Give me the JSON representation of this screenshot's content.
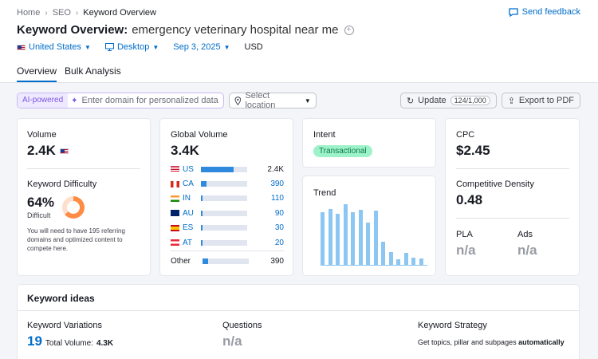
{
  "breadcrumbs": [
    "Home",
    "SEO",
    "Keyword Overview"
  ],
  "feedback_label": "Send feedback",
  "title": {
    "prefix": "Keyword Overview:",
    "keyword": "emergency veterinary hospital near me"
  },
  "filters": {
    "country": "United States",
    "device": "Desktop",
    "date": "Sep 3, 2025",
    "currency": "USD"
  },
  "tabs": [
    "Overview",
    "Bulk Analysis"
  ],
  "ai": {
    "tag": "AI-powered",
    "placeholder": "Enter domain for personalized data"
  },
  "location_placeholder": "Select location",
  "update": {
    "label": "Update",
    "count": "124/1,000"
  },
  "export_label": "Export to PDF",
  "volume": {
    "label": "Volume",
    "value": "2.4K"
  },
  "difficulty": {
    "label": "Keyword Difficulty",
    "value": "64%",
    "level": "Difficult",
    "percent": 64,
    "note": "You will need to have 195 referring domains and optimized content to compete here."
  },
  "global": {
    "label": "Global Volume",
    "value": "3.4K",
    "rows": [
      {
        "code": "US",
        "value": "2.4K",
        "share": 0.71
      },
      {
        "code": "CA",
        "value": "390",
        "share": 0.115
      },
      {
        "code": "IN",
        "value": "110",
        "share": 0.035
      },
      {
        "code": "AU",
        "value": "90",
        "share": 0.028
      },
      {
        "code": "ES",
        "value": "30",
        "share": 0.012
      },
      {
        "code": "AT",
        "value": "20",
        "share": 0.008
      }
    ],
    "other": {
      "label": "Other",
      "value": "390",
      "share": 0.115
    }
  },
  "intent": {
    "label": "Intent",
    "value": "Transactional"
  },
  "trend": {
    "label": "Trend",
    "values": [
      72,
      76,
      70,
      83,
      72,
      75,
      58,
      74,
      32,
      17,
      8,
      16,
      10,
      9
    ]
  },
  "cpc": {
    "label": "CPC",
    "value": "$2.45"
  },
  "density": {
    "label": "Competitive Density",
    "value": "0.48"
  },
  "pla": {
    "label": "PLA",
    "value": "n/a"
  },
  "ads": {
    "label": "Ads",
    "value": "n/a"
  },
  "ideas": {
    "title": "Keyword ideas",
    "variations": {
      "label": "Keyword Variations",
      "count": "19",
      "total_label": "Total Volume:",
      "total": "4.3K"
    },
    "questions": {
      "label": "Questions",
      "value": "n/a"
    },
    "strategy": {
      "label": "Keyword Strategy",
      "text": "Get topics, pillar and subpages",
      "bold": "automatically"
    }
  }
}
